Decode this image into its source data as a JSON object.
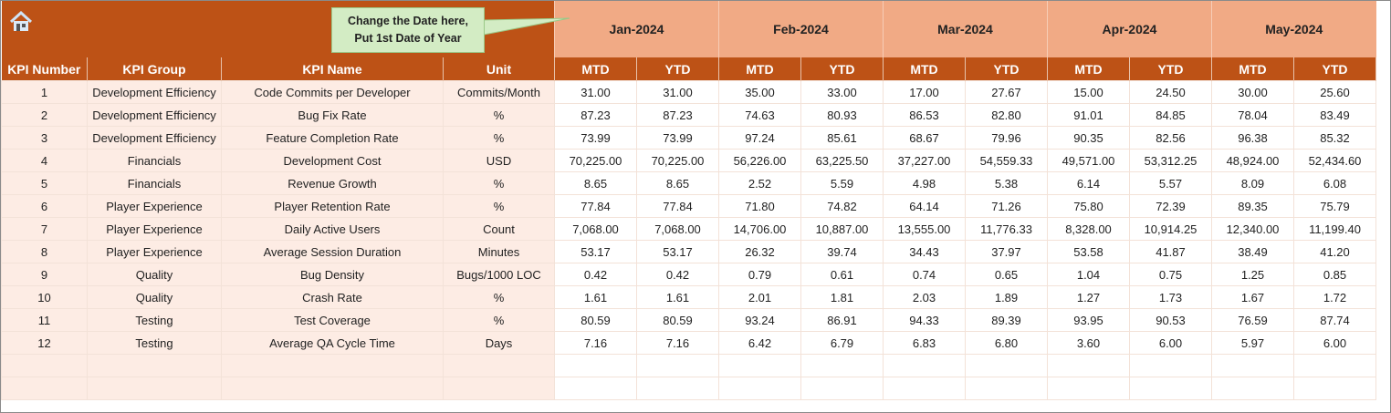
{
  "callout": {
    "line1": "Change the Date here,",
    "line2": "Put 1st Date of Year"
  },
  "months": [
    "Jan-2024",
    "Feb-2024",
    "Mar-2024",
    "Apr-2024",
    "May-2024"
  ],
  "headers": {
    "kpi_number": "KPI Number",
    "kpi_group": "KPI Group",
    "kpi_name": "KPI Name",
    "unit": "Unit",
    "mtd": "MTD",
    "ytd": "YTD"
  },
  "rows": [
    [
      "1",
      "Development Efficiency",
      "Code Commits per Developer",
      "Commits/Month",
      "31.00",
      "31.00",
      "35.00",
      "33.00",
      "17.00",
      "27.67",
      "15.00",
      "24.50",
      "30.00",
      "25.60"
    ],
    [
      "2",
      "Development Efficiency",
      "Bug Fix Rate",
      "%",
      "87.23",
      "87.23",
      "74.63",
      "80.93",
      "86.53",
      "82.80",
      "91.01",
      "84.85",
      "78.04",
      "83.49"
    ],
    [
      "3",
      "Development Efficiency",
      "Feature Completion Rate",
      "%",
      "73.99",
      "73.99",
      "97.24",
      "85.61",
      "68.67",
      "79.96",
      "90.35",
      "82.56",
      "96.38",
      "85.32"
    ],
    [
      "4",
      "Financials",
      "Development Cost",
      "USD",
      "70,225.00",
      "70,225.00",
      "56,226.00",
      "63,225.50",
      "37,227.00",
      "54,559.33",
      "49,571.00",
      "53,312.25",
      "48,924.00",
      "52,434.60"
    ],
    [
      "5",
      "Financials",
      "Revenue Growth",
      "%",
      "8.65",
      "8.65",
      "2.52",
      "5.59",
      "4.98",
      "5.38",
      "6.14",
      "5.57",
      "8.09",
      "6.08"
    ],
    [
      "6",
      "Player Experience",
      "Player Retention Rate",
      "%",
      "77.84",
      "77.84",
      "71.80",
      "74.82",
      "64.14",
      "71.26",
      "75.80",
      "72.39",
      "89.35",
      "75.79"
    ],
    [
      "7",
      "Player Experience",
      "Daily Active Users",
      "Count",
      "7,068.00",
      "7,068.00",
      "14,706.00",
      "10,887.00",
      "13,555.00",
      "11,776.33",
      "8,328.00",
      "10,914.25",
      "12,340.00",
      "11,199.40"
    ],
    [
      "8",
      "Player Experience",
      "Average Session Duration",
      "Minutes",
      "53.17",
      "53.17",
      "26.32",
      "39.74",
      "34.43",
      "37.97",
      "53.58",
      "41.87",
      "38.49",
      "41.20"
    ],
    [
      "9",
      "Quality",
      "Bug Density",
      "Bugs/1000 LOC",
      "0.42",
      "0.42",
      "0.79",
      "0.61",
      "0.74",
      "0.65",
      "1.04",
      "0.75",
      "1.25",
      "0.85"
    ],
    [
      "10",
      "Quality",
      "Crash Rate",
      "%",
      "1.61",
      "1.61",
      "2.01",
      "1.81",
      "2.03",
      "1.89",
      "1.27",
      "1.73",
      "1.67",
      "1.72"
    ],
    [
      "11",
      "Testing",
      "Test Coverage",
      "%",
      "80.59",
      "80.59",
      "93.24",
      "86.91",
      "94.33",
      "89.39",
      "93.95",
      "90.53",
      "76.59",
      "87.74"
    ],
    [
      "12",
      "Testing",
      "Average QA Cycle Time",
      "Days",
      "7.16",
      "7.16",
      "6.42",
      "6.79",
      "6.83",
      "6.80",
      "3.60",
      "6.00",
      "5.97",
      "6.00"
    ]
  ],
  "empty_rows": 2,
  "colors": {
    "banner": "#bd5216",
    "month_bg": "#f1aa85",
    "left_bg": "#fdece4",
    "callout": "#d3ecc4"
  }
}
